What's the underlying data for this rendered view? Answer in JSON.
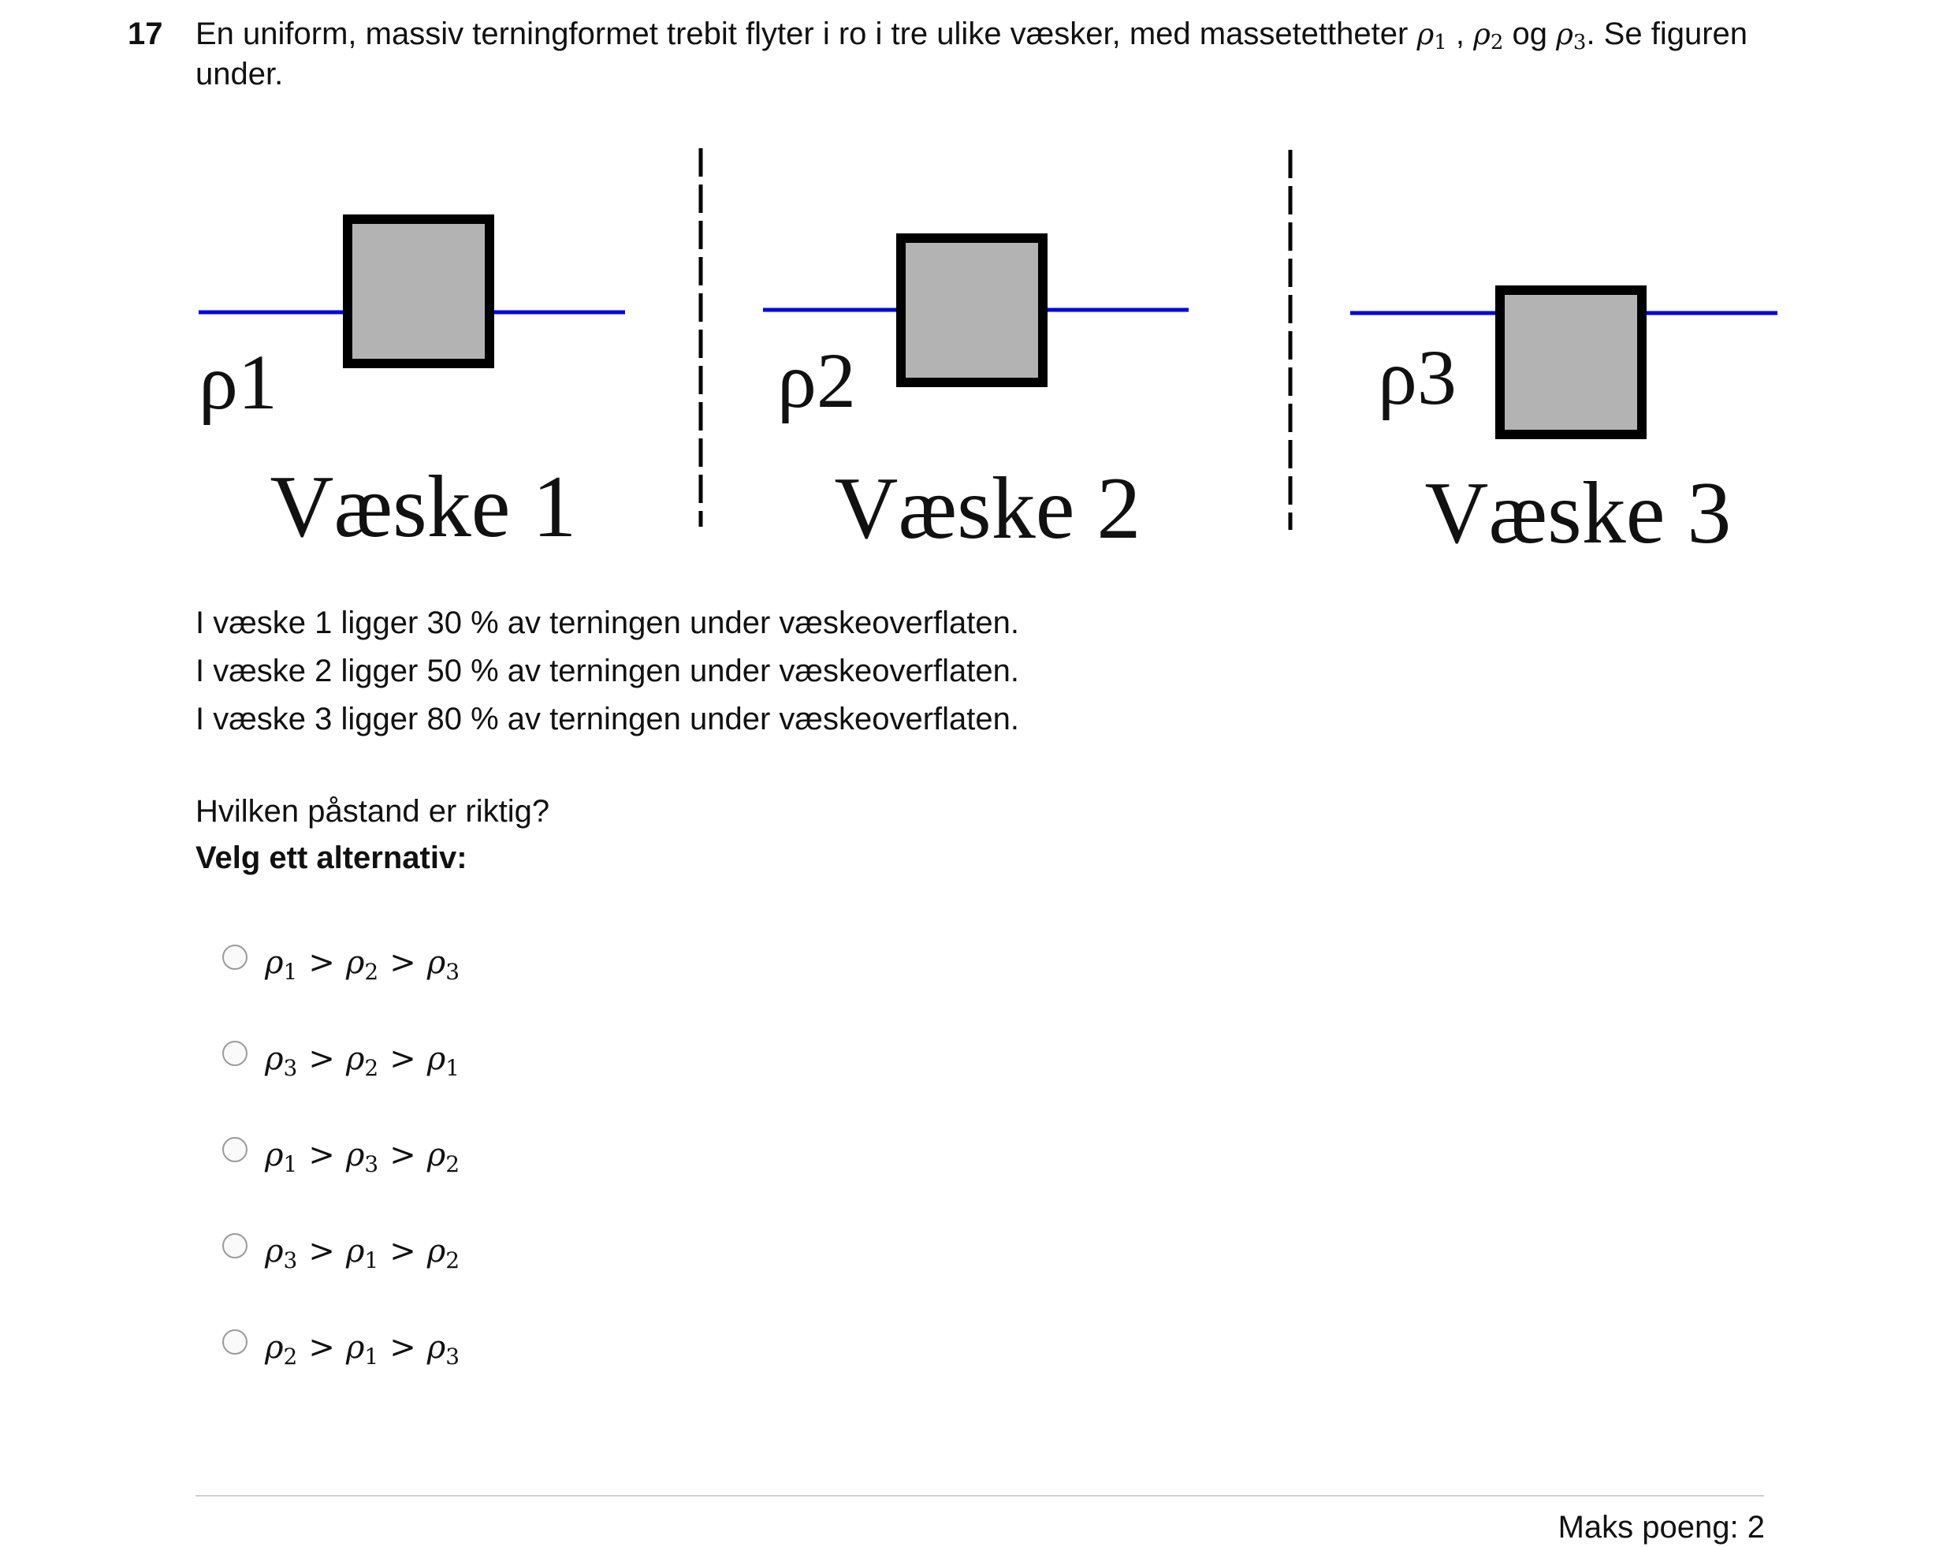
{
  "question": {
    "number": "17",
    "text_before": "En uniform, massiv terningformet trebit flyter i ro i tre ulike væsker, med massetettheter ",
    "sym_rho": "ρ",
    "sub_1": "1",
    "sep_1": " , ",
    "sub_2": "2",
    "sep_2": " og ",
    "sub_3": "3",
    "text_after": ". Se figuren under."
  },
  "figure": {
    "panels": [
      {
        "rho_label": "ρ1",
        "caption": "Væske 1",
        "submerged_fraction": 0.3
      },
      {
        "rho_label": "ρ2",
        "caption": "Væske 2",
        "submerged_fraction": 0.5
      },
      {
        "rho_label": "ρ3",
        "caption": "Væske 3",
        "submerged_fraction": 0.8
      }
    ],
    "colors": {
      "liquid_line": "#0000dd",
      "cube_fill": "#b3b3b3",
      "cube_border": "#000000"
    }
  },
  "info_lines": [
    "I væske 1 ligger 30 % av terningen under væskeoverflaten.",
    "I væske 2 ligger 50 % av terningen under væskeoverflaten.",
    "I væske 3 ligger 80 % av terningen under væskeoverflaten."
  ],
  "prompt": "Hvilken påstand er riktig?",
  "choose_label": "Velg ett alternativ:",
  "options": [
    {
      "a": "1",
      "b": "2",
      "c": "3",
      "selected": false
    },
    {
      "a": "3",
      "b": "2",
      "c": "1",
      "selected": false
    },
    {
      "a": "1",
      "b": "3",
      "c": "2",
      "selected": false
    },
    {
      "a": "3",
      "b": "1",
      "c": "2",
      "selected": false
    },
    {
      "a": "2",
      "b": "1",
      "c": "3",
      "selected": false
    }
  ],
  "option_symbols": {
    "rho": "ρ",
    "gt": ">"
  },
  "footer": {
    "max_points": "Maks poeng: 2"
  }
}
